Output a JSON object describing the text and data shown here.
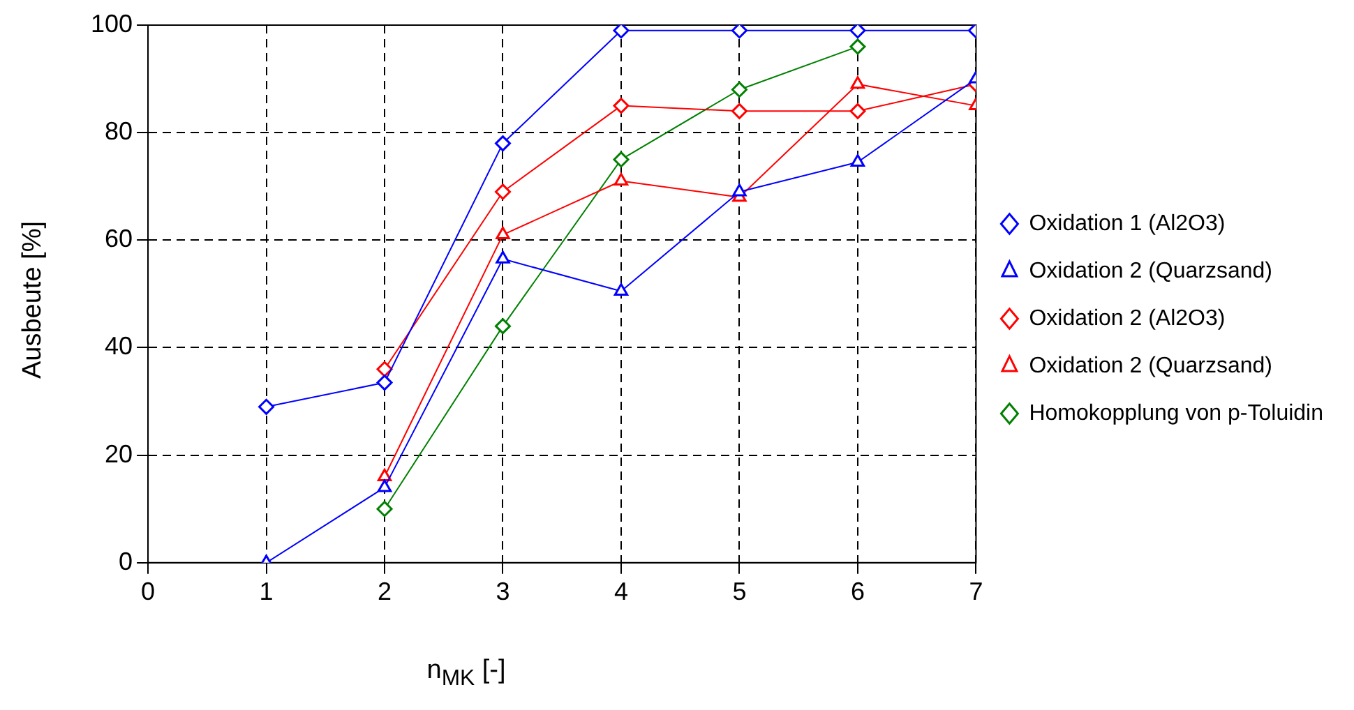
{
  "chart_data": {
    "type": "line",
    "xlabel": "n$_{MK}$ [-]",
    "ylabel": "Ausbeute [%]",
    "xlim": [
      0,
      7
    ],
    "xticks": [
      0,
      1,
      2,
      3,
      4,
      5,
      6,
      7
    ],
    "ylim": [
      0,
      100
    ],
    "yticks": [
      0,
      20,
      40,
      60,
      80,
      100
    ],
    "x": [
      1,
      2,
      3,
      4,
      5,
      6,
      7
    ],
    "grid": true,
    "legend": "right",
    "line_style": "solid",
    "series": [
      {
        "name": "Oxidation 1 (Al2O3)",
        "color": "#0000ff",
        "marker": "diamond",
        "values": [
          29,
          33.5,
          78,
          99,
          99,
          99,
          99
        ]
      },
      {
        "name": "Oxidation 2 (Quarzsand)",
        "color": "#0000ff",
        "marker": "triangle",
        "values": [
          0,
          14,
          56.5,
          50.5,
          69,
          74.5,
          90
        ]
      },
      {
        "name": "Oxidation 2 (Al2O3)",
        "color": "#ff0000",
        "marker": "diamond",
        "values": [
          null,
          36,
          69,
          85,
          84,
          84,
          89
        ]
      },
      {
        "name": "Oxidation 2 (Quarzsand)",
        "color": "#ff0000",
        "marker": "triangle",
        "values": [
          null,
          16,
          61,
          71,
          68,
          89,
          85
        ]
      },
      {
        "name": "Homokopplung von p-Toluidin",
        "color": "#008000",
        "marker": "diamond",
        "values": [
          null,
          10,
          44,
          75,
          88,
          96,
          null
        ]
      }
    ]
  }
}
